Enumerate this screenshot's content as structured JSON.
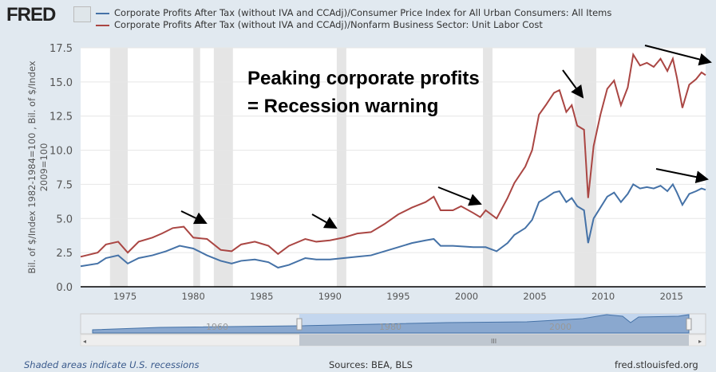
{
  "header": {
    "logo": "FRED",
    "legend": [
      {
        "label": "Corporate Profits After Tax (without IVA and CCAdj)/Consumer Price Index for All Urban Consumers: All Items",
        "color": "#4572a7"
      },
      {
        "label": "Corporate Profits After Tax (without IVA and CCAdj)/Nonfarm Business Sector: Unit Labor Cost",
        "color": "#aa4643"
      }
    ]
  },
  "annotation": {
    "line1": "Peaking corporate profits",
    "line2": "= Recession warning"
  },
  "navigator": {
    "ticks": [
      "1960",
      "1980",
      "2000"
    ]
  },
  "footer": {
    "note": "Shaded areas indicate U.S. recessions",
    "sources": "Sources: BEA, BLS",
    "site": "fred.stlouisfed.org"
  },
  "chart_data": {
    "type": "line",
    "ylabel": "Bil. of $/Index 1982-1984=100 , Bil. of $/Index 2009=100",
    "xlim": [
      1971.75,
      2017.5
    ],
    "ylim": [
      0,
      17.5
    ],
    "xticks": [
      1975,
      1980,
      1985,
      1990,
      1995,
      2000,
      2005,
      2010,
      2015
    ],
    "yticks": [
      "0.0",
      "2.5",
      "5.0",
      "7.5",
      "10.0",
      "12.5",
      "15.0",
      "17.5"
    ],
    "recessions": [
      [
        1973.9,
        1975.2
      ],
      [
        1980.0,
        1980.5
      ],
      [
        1981.5,
        1982.9
      ],
      [
        1990.5,
        1991.2
      ],
      [
        2001.2,
        2001.9
      ],
      [
        2007.9,
        2009.5
      ]
    ],
    "series": [
      {
        "name": "Corporate Profits After Tax / Unit Labor Cost",
        "color": "#aa4643",
        "points": [
          [
            1971.75,
            2.2
          ],
          [
            1973,
            2.5
          ],
          [
            1973.6,
            3.1
          ],
          [
            1974.5,
            3.3
          ],
          [
            1975.2,
            2.5
          ],
          [
            1976,
            3.3
          ],
          [
            1977,
            3.6
          ],
          [
            1977.7,
            3.9
          ],
          [
            1978.5,
            4.3
          ],
          [
            1979.3,
            4.4
          ],
          [
            1980,
            3.6
          ],
          [
            1981,
            3.5
          ],
          [
            1982,
            2.7
          ],
          [
            1982.8,
            2.6
          ],
          [
            1983.5,
            3.1
          ],
          [
            1984.5,
            3.3
          ],
          [
            1985.5,
            3.0
          ],
          [
            1986.2,
            2.4
          ],
          [
            1987,
            3.0
          ],
          [
            1988.2,
            3.5
          ],
          [
            1989,
            3.3
          ],
          [
            1990,
            3.4
          ],
          [
            1991,
            3.6
          ],
          [
            1992,
            3.9
          ],
          [
            1993,
            4.0
          ],
          [
            1994,
            4.6
          ],
          [
            1995,
            5.3
          ],
          [
            1996,
            5.8
          ],
          [
            1997,
            6.2
          ],
          [
            1997.6,
            6.6
          ],
          [
            1998.1,
            5.6
          ],
          [
            1999,
            5.6
          ],
          [
            1999.6,
            5.9
          ],
          [
            2000.5,
            5.4
          ],
          [
            2001,
            5.1
          ],
          [
            2001.4,
            5.6
          ],
          [
            2002.2,
            5.0
          ],
          [
            2003,
            6.5
          ],
          [
            2003.5,
            7.6
          ],
          [
            2004.3,
            8.8
          ],
          [
            2004.8,
            10.0
          ],
          [
            2005.3,
            12.6
          ],
          [
            2005.8,
            13.3
          ],
          [
            2006.4,
            14.2
          ],
          [
            2006.8,
            14.4
          ],
          [
            2007.3,
            12.8
          ],
          [
            2007.7,
            13.3
          ],
          [
            2008.1,
            11.8
          ],
          [
            2008.6,
            11.5
          ],
          [
            2008.9,
            6.5
          ],
          [
            2009.3,
            10.3
          ],
          [
            2009.8,
            12.6
          ],
          [
            2010.3,
            14.5
          ],
          [
            2010.8,
            15.1
          ],
          [
            2011.3,
            13.3
          ],
          [
            2011.8,
            14.6
          ],
          [
            2012.2,
            17.0
          ],
          [
            2012.7,
            16.2
          ],
          [
            2013.2,
            16.4
          ],
          [
            2013.7,
            16.1
          ],
          [
            2014.2,
            16.7
          ],
          [
            2014.7,
            15.8
          ],
          [
            2015.1,
            16.7
          ],
          [
            2015.4,
            15.3
          ],
          [
            2015.8,
            13.1
          ],
          [
            2016.3,
            14.8
          ],
          [
            2016.8,
            15.2
          ],
          [
            2017.2,
            15.7
          ],
          [
            2017.5,
            15.5
          ]
        ]
      },
      {
        "name": "Corporate Profits After Tax / CPI",
        "color": "#4572a7",
        "points": [
          [
            1971.75,
            1.5
          ],
          [
            1973,
            1.7
          ],
          [
            1973.6,
            2.1
          ],
          [
            1974.5,
            2.3
          ],
          [
            1975.2,
            1.7
          ],
          [
            1976,
            2.1
          ],
          [
            1977,
            2.3
          ],
          [
            1978,
            2.6
          ],
          [
            1979,
            3.0
          ],
          [
            1980,
            2.8
          ],
          [
            1981,
            2.3
          ],
          [
            1982,
            1.9
          ],
          [
            1982.8,
            1.7
          ],
          [
            1983.5,
            1.9
          ],
          [
            1984.5,
            2.0
          ],
          [
            1985.5,
            1.8
          ],
          [
            1986.2,
            1.4
          ],
          [
            1987,
            1.6
          ],
          [
            1988.2,
            2.1
          ],
          [
            1989,
            2.0
          ],
          [
            1990,
            2.0
          ],
          [
            1991,
            2.1
          ],
          [
            1992,
            2.2
          ],
          [
            1993,
            2.3
          ],
          [
            1994,
            2.6
          ],
          [
            1995,
            2.9
          ],
          [
            1996,
            3.2
          ],
          [
            1997,
            3.4
          ],
          [
            1997.6,
            3.5
          ],
          [
            1998.1,
            3.0
          ],
          [
            1999,
            3.0
          ],
          [
            2000.5,
            2.9
          ],
          [
            2001.4,
            2.9
          ],
          [
            2002.2,
            2.6
          ],
          [
            2003,
            3.2
          ],
          [
            2003.5,
            3.8
          ],
          [
            2004.3,
            4.3
          ],
          [
            2004.8,
            4.9
          ],
          [
            2005.3,
            6.2
          ],
          [
            2005.8,
            6.5
          ],
          [
            2006.4,
            6.9
          ],
          [
            2006.8,
            7.0
          ],
          [
            2007.3,
            6.2
          ],
          [
            2007.7,
            6.5
          ],
          [
            2008.1,
            5.9
          ],
          [
            2008.6,
            5.6
          ],
          [
            2008.9,
            3.2
          ],
          [
            2009.3,
            5.0
          ],
          [
            2009.8,
            5.8
          ],
          [
            2010.3,
            6.6
          ],
          [
            2010.8,
            6.9
          ],
          [
            2011.3,
            6.2
          ],
          [
            2011.8,
            6.8
          ],
          [
            2012.2,
            7.5
          ],
          [
            2012.7,
            7.2
          ],
          [
            2013.2,
            7.3
          ],
          [
            2013.7,
            7.2
          ],
          [
            2014.2,
            7.4
          ],
          [
            2014.7,
            7.0
          ],
          [
            2015.1,
            7.5
          ],
          [
            2015.4,
            6.9
          ],
          [
            2015.8,
            6.0
          ],
          [
            2016.3,
            6.8
          ],
          [
            2016.8,
            7.0
          ],
          [
            2017.2,
            7.2
          ],
          [
            2017.5,
            7.1
          ]
        ]
      }
    ]
  }
}
